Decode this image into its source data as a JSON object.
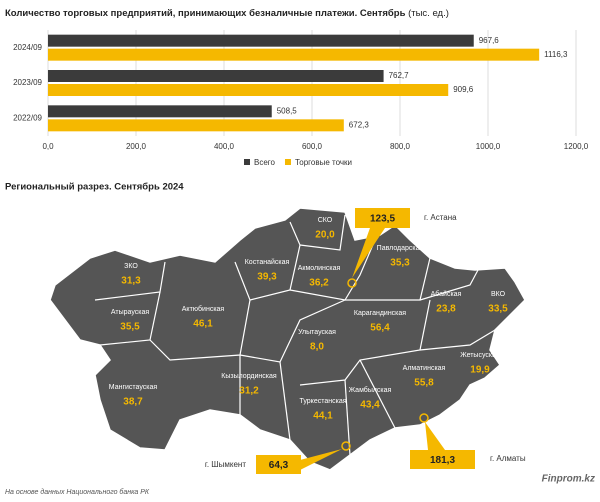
{
  "chart_data": [
    {
      "type": "bar",
      "orientation": "horizontal",
      "title": "Количество торговых предприятий, принимающих безналичные платежи. Сентябрь",
      "subtitle": "(тыс. ед.)",
      "categories": [
        "2024/09",
        "2023/09",
        "2022/09"
      ],
      "series": [
        {
          "name": "Всего",
          "color": "#3b3b3b",
          "values": [
            967.6,
            762.7,
            508.5
          ],
          "value_labels": [
            "967,6",
            "762,7",
            "508,5"
          ]
        },
        {
          "name": "Торговые точки",
          "color": "#f5b800",
          "values": [
            1116.3,
            909.6,
            672.3
          ],
          "value_labels": [
            "1116,3",
            "909,6",
            "672,3"
          ]
        }
      ],
      "xlim": [
        0,
        1200
      ],
      "xticks": [
        {
          "value": 0,
          "label": "0,0"
        },
        {
          "value": 200,
          "label": "200,0"
        },
        {
          "value": 400,
          "label": "400,0"
        },
        {
          "value": 600,
          "label": "600,0"
        },
        {
          "value": 800,
          "label": "800,0"
        },
        {
          "value": 1000,
          "label": "1000,0"
        },
        {
          "value": 1200,
          "label": "1200,0"
        }
      ],
      "grid": true,
      "legend": "bottom"
    },
    {
      "type": "map",
      "title": "Региональный разрез. Сентябрь 2024",
      "color": "#f5b800",
      "regions": [
        {
          "name": "ЗКО",
          "value": 31.3,
          "value_label": "31,3"
        },
        {
          "name": "Атырауская",
          "value": 35.5,
          "value_label": "35,5"
        },
        {
          "name": "Мангистауская",
          "value": 38.7,
          "value_label": "38,7"
        },
        {
          "name": "Актюбинская",
          "value": 46.1,
          "value_label": "46,1"
        },
        {
          "name": "Костанайская",
          "value": 39.3,
          "value_label": "39,3"
        },
        {
          "name": "СКО",
          "value": 20.0,
          "value_label": "20,0"
        },
        {
          "name": "Акмолинская",
          "value": 36.2,
          "value_label": "36,2"
        },
        {
          "name": "Павлодарская",
          "value": 35.3,
          "value_label": "35,3"
        },
        {
          "name": "ВКО",
          "value": 33.5,
          "value_label": "33,5"
        },
        {
          "name": "Абайская",
          "value": 23.8,
          "value_label": "23,8"
        },
        {
          "name": "Карагандинская",
          "value": 56.4,
          "value_label": "56,4"
        },
        {
          "name": "Улытауская",
          "value": 8.0,
          "value_label": "8,0"
        },
        {
          "name": "Кызылординская",
          "value": 31.2,
          "value_label": "31,2"
        },
        {
          "name": "Туркестанская",
          "value": 44.1,
          "value_label": "44,1"
        },
        {
          "name": "Жамбылская",
          "value": 43.4,
          "value_label": "43,4"
        },
        {
          "name": "Алматинская",
          "value": 55.8,
          "value_label": "55,8"
        },
        {
          "name": "Жетысуская",
          "value": 19.9,
          "value_label": "19,9"
        }
      ],
      "cities": [
        {
          "name": "г. Астана",
          "value": 123.5,
          "value_label": "123,5"
        },
        {
          "name": "г. Алматы",
          "value": 181.3,
          "value_label": "181,3"
        },
        {
          "name": "г. Шымкент",
          "value": 64.3,
          "value_label": "64,3"
        }
      ]
    }
  ],
  "footer": {
    "source": "На основе данных Национального банка РК",
    "brand": "Finprom.kz"
  }
}
